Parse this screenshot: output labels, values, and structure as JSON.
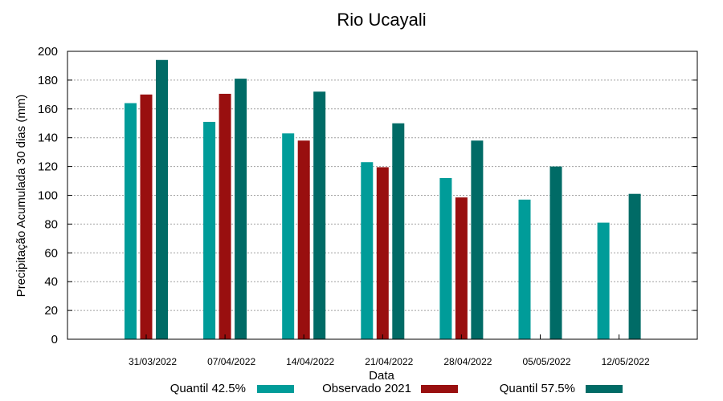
{
  "chart_data": {
    "type": "bar",
    "title": "Rio Ucayali",
    "xlabel": "Data",
    "ylabel": "Precipitação Acumulada 30 dias (mm)",
    "ylim": [
      0,
      200
    ],
    "yticks": [
      0,
      20,
      40,
      60,
      80,
      100,
      120,
      140,
      160,
      180,
      200
    ],
    "grid": true,
    "legend_position": "bottom",
    "categories": [
      "31/03/2022",
      "07/04/2022",
      "14/04/2022",
      "21/04/2022",
      "28/04/2022",
      "05/05/2022",
      "12/05/2022"
    ],
    "series": [
      {
        "name": "Quantil 42.5%",
        "color": "#009c99",
        "values": [
          164,
          151,
          143,
          123,
          112,
          97,
          81
        ]
      },
      {
        "name": "Observado 2021",
        "color": "#990f0f",
        "values": [
          170,
          170.5,
          138,
          119.5,
          98.5,
          null,
          null
        ]
      },
      {
        "name": "Quantil 57.5%",
        "color": "#006b66",
        "values": [
          194,
          181,
          172,
          150,
          138,
          120,
          101
        ]
      }
    ]
  }
}
